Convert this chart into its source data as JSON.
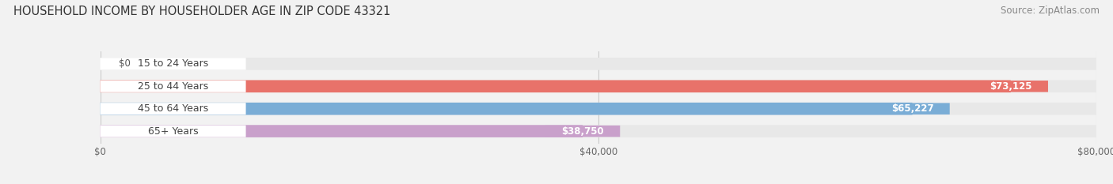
{
  "title": "HOUSEHOLD INCOME BY HOUSEHOLDER AGE IN ZIP CODE 43321",
  "source": "Source: ZipAtlas.com",
  "categories": [
    "15 to 24 Years",
    "25 to 44 Years",
    "45 to 64 Years",
    "65+ Years"
  ],
  "values": [
    0,
    73125,
    65227,
    38750
  ],
  "value_labels": [
    "$0",
    "$73,125",
    "$65,227",
    "$38,750"
  ],
  "bar_colors": [
    "#f2c896",
    "#e8726a",
    "#7aadd6",
    "#c9a0cb"
  ],
  "xlim": [
    0,
    80000
  ],
  "xticks": [
    0,
    40000,
    80000
  ],
  "xticklabels": [
    "$0",
    "$40,000",
    "$80,000"
  ],
  "title_fontsize": 10.5,
  "source_fontsize": 8.5,
  "bar_label_fontsize": 8.5,
  "category_fontsize": 9,
  "background_color": "#f2f2f2",
  "bar_track_color": "#e8e8e8",
  "bar_height": 0.55,
  "figsize": [
    14.06,
    2.33
  ],
  "dpi": 100
}
